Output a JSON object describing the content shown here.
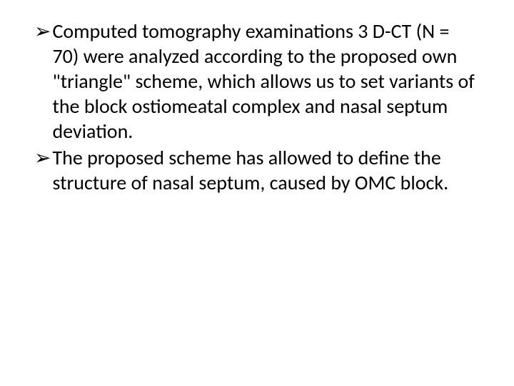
{
  "slide": {
    "background_color": "#ffffff",
    "text_color": "#000000",
    "font_family": "Calibri",
    "font_size_pt": 28,
    "line_height": 1.25,
    "bullet_glyph": "➢",
    "bullets": [
      {
        "text": "Computed tomography examinations 3 D-CT (N = 70) were analyzed according to the proposed own \"triangle\" scheme, which allows us to set variants of the block ostiomeatal complex and nasal septum deviation."
      },
      {
        "text": "The proposed scheme has allowed to define the structure of nasal septum, caused by OMC block."
      }
    ]
  }
}
